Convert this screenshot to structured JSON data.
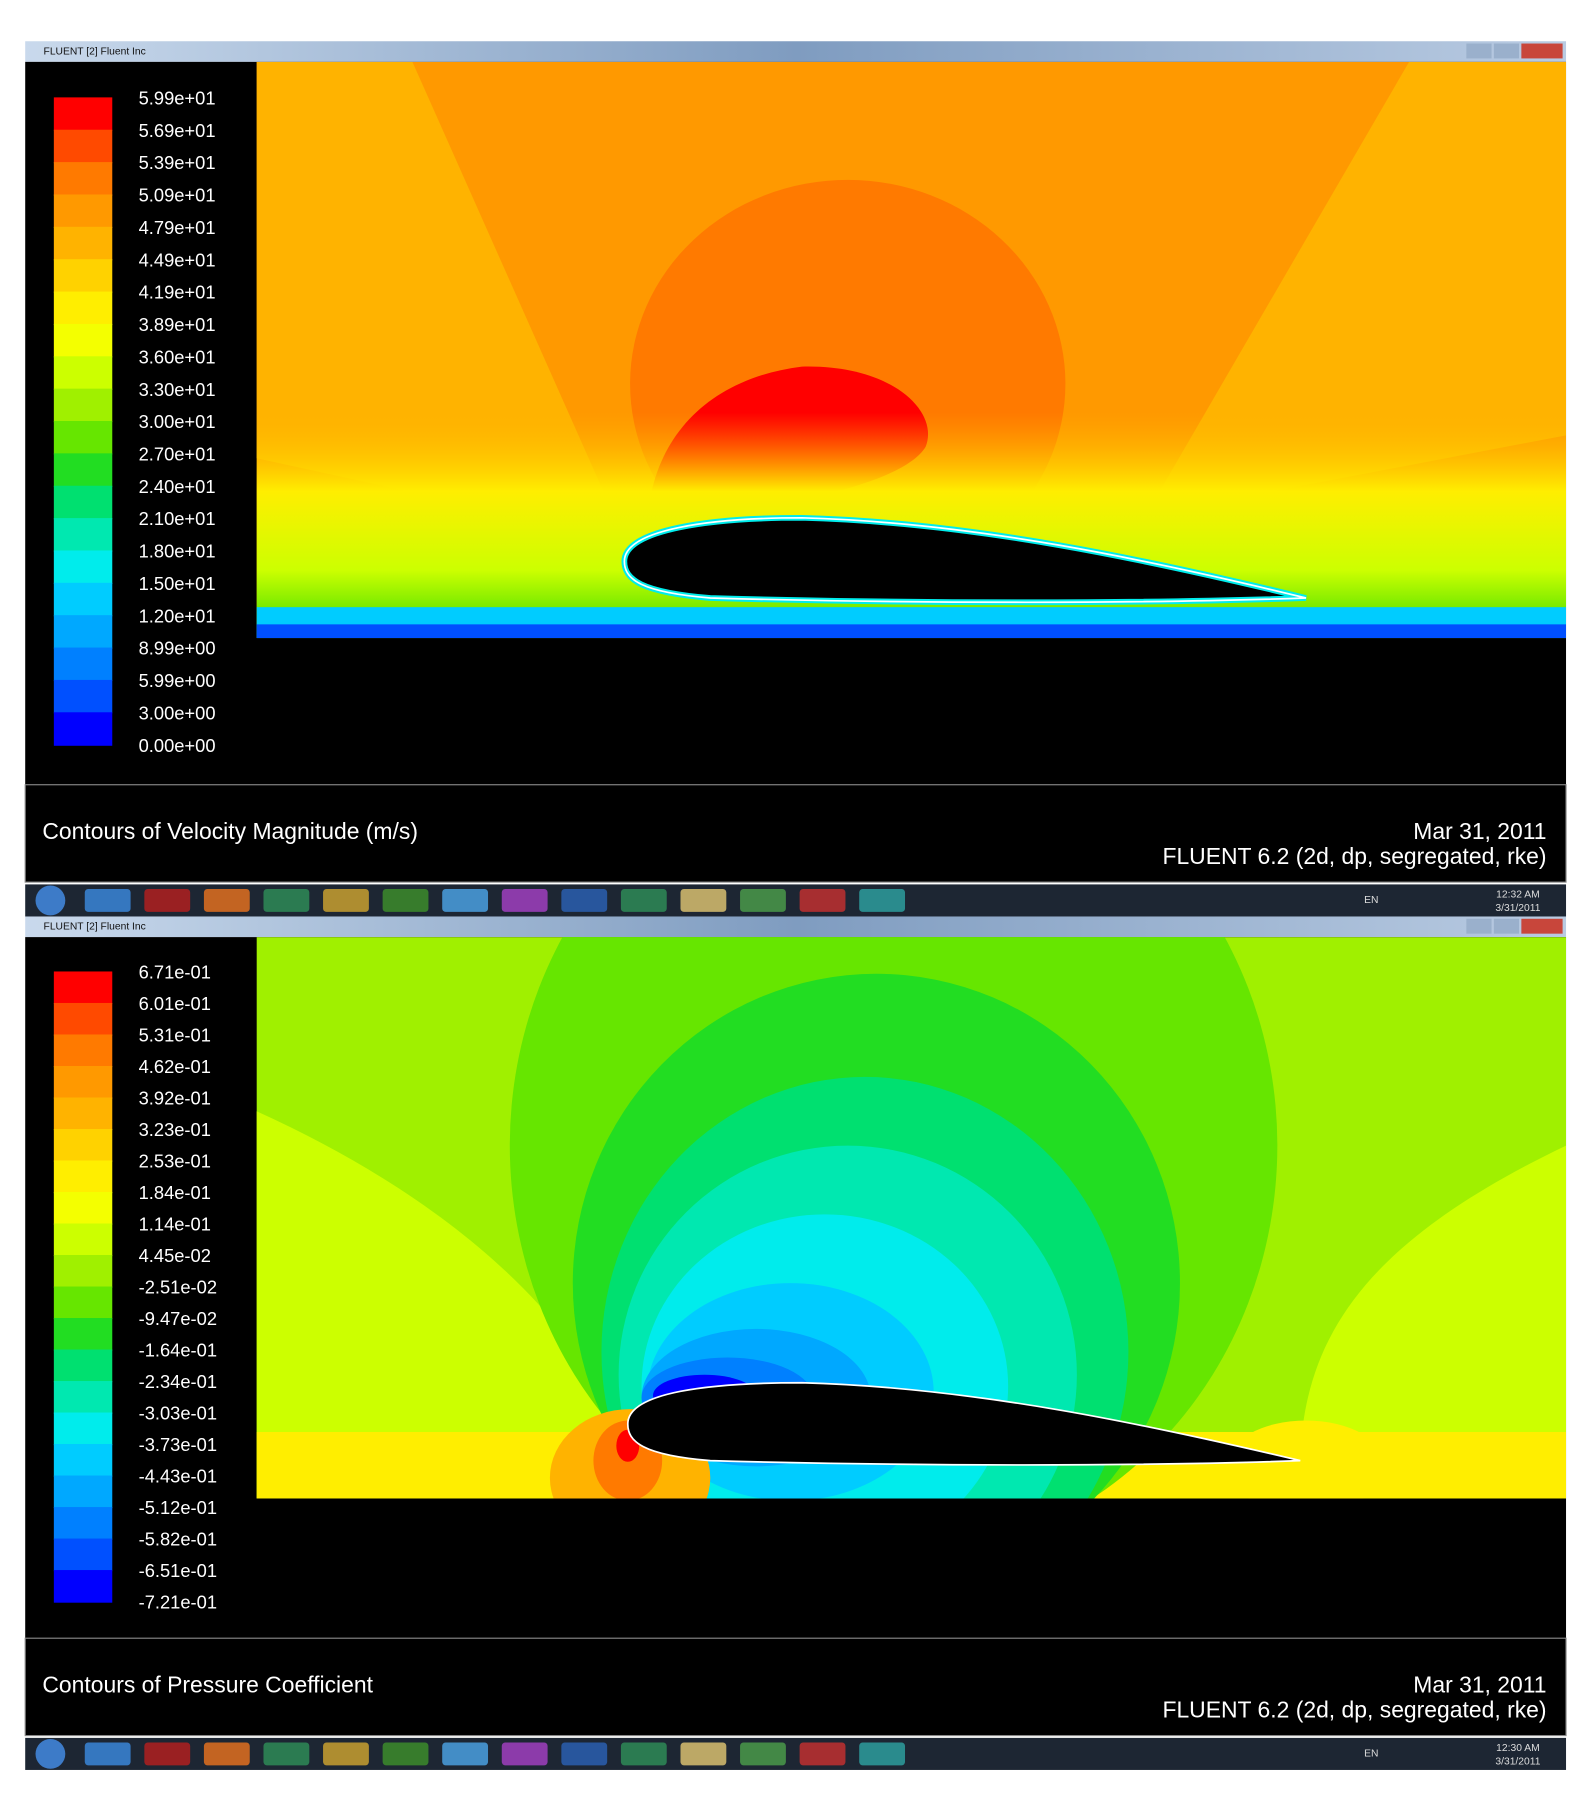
{
  "windows": [
    {
      "title": "FLUENT [2] Fluent Inc",
      "legend": {
        "labels": [
          "5.99e+01",
          "5.69e+01",
          "5.39e+01",
          "5.09e+01",
          "4.79e+01",
          "4.49e+01",
          "4.19e+01",
          "3.89e+01",
          "3.60e+01",
          "3.30e+01",
          "3.00e+01",
          "2.70e+01",
          "2.40e+01",
          "2.10e+01",
          "1.80e+01",
          "1.50e+01",
          "1.20e+01",
          "8.99e+00",
          "5.99e+00",
          "3.00e+00",
          "0.00e+00"
        ],
        "colors": [
          "#ff0000",
          "#ff4a00",
          "#ff7a00",
          "#ff9900",
          "#ffb300",
          "#ffd200",
          "#ffee00",
          "#f4ff00",
          "#ccff00",
          "#a0f000",
          "#66e600",
          "#22dd22",
          "#00e070",
          "#00e8b0",
          "#00ecec",
          "#00ccff",
          "#00a8ff",
          "#0080ff",
          "#0050ff",
          "#0000ff"
        ]
      },
      "caption": "Contours of Velocity Magnitude (m/s)",
      "date": "Mar 31, 2011",
      "version": "FLUENT 6.2 (2d, dp, segregated, rke)",
      "taskbar": {
        "language": "EN",
        "time": "12:32 AM",
        "date": "3/31/2011"
      }
    },
    {
      "title": "FLUENT [2] Fluent Inc",
      "legend": {
        "labels": [
          "6.71e-01",
          "6.01e-01",
          "5.31e-01",
          "4.62e-01",
          "3.92e-01",
          "3.23e-01",
          "2.53e-01",
          "1.84e-01",
          "1.14e-01",
          "4.45e-02",
          "-2.51e-02",
          "-9.47e-02",
          "-1.64e-01",
          "-2.34e-01",
          "-3.03e-01",
          "-3.73e-01",
          "-4.43e-01",
          "-5.12e-01",
          "-5.82e-01",
          "-6.51e-01",
          "-7.21e-01"
        ],
        "colors": [
          "#ff0000",
          "#ff4a00",
          "#ff7a00",
          "#ff9900",
          "#ffb300",
          "#ffd200",
          "#ffee00",
          "#f4ff00",
          "#ccff00",
          "#a0f000",
          "#66e600",
          "#22dd22",
          "#00e070",
          "#00e8b0",
          "#00ecec",
          "#00ccff",
          "#00a8ff",
          "#0080ff",
          "#0050ff",
          "#0000ff"
        ]
      },
      "caption": "Contours of Pressure Coefficient",
      "date": "Mar 31, 2011",
      "version": "FLUENT 6.2 (2d, dp, segregated, rke)",
      "taskbar": {
        "language": "EN",
        "time": "12:30 AM",
        "date": "3/31/2011"
      }
    }
  ]
}
